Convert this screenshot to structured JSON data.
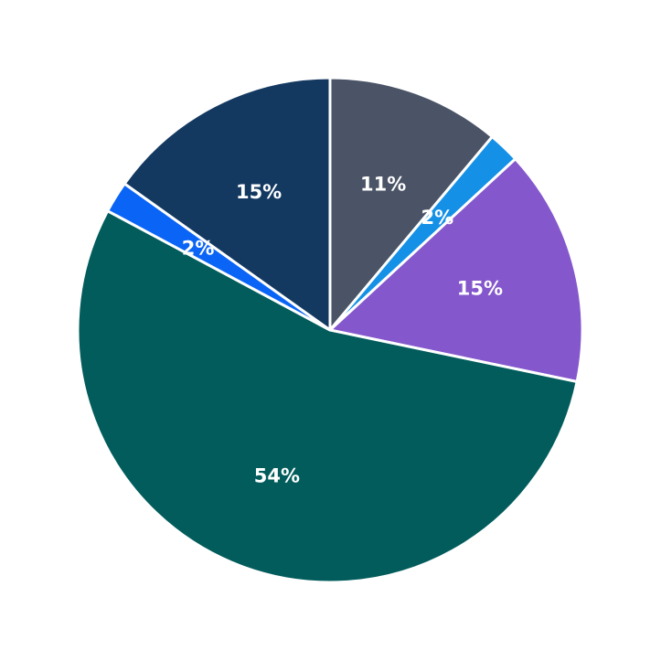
{
  "chart_data": {
    "type": "pie",
    "title": "",
    "slices": [
      {
        "value": 11,
        "label": "11%",
        "color": "#4a5466"
      },
      {
        "value": 2,
        "label": "2%",
        "color": "#1490e6"
      },
      {
        "value": 15,
        "label": "15%",
        "color": "#8457cc"
      },
      {
        "value": 54,
        "label": "54%",
        "color": "#025c5c"
      },
      {
        "value": 2,
        "label": "2%",
        "color": "#0a64f5"
      },
      {
        "value": 15,
        "label": "15%",
        "color": "#143961"
      }
    ],
    "start_angle_deg": 0,
    "direction": "clockwise"
  }
}
